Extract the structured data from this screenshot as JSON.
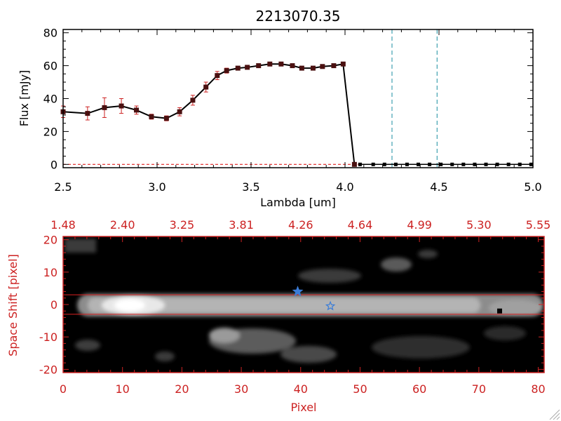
{
  "chart_data": [
    {
      "type": "line",
      "title": "2213070.35",
      "xlabel": "Lambda [um]",
      "ylabel": "Flux [mJy]",
      "xlim": [
        2.5,
        5.0
      ],
      "ylim": [
        -2,
        82
      ],
      "xticks": [
        {
          "value": 2.5,
          "label": "2.5"
        },
        {
          "value": 3.0,
          "label": "3.0"
        },
        {
          "value": 3.5,
          "label": "3.5"
        },
        {
          "value": 4.0,
          "label": "4.0"
        },
        {
          "value": 4.5,
          "label": "4.5"
        },
        {
          "value": 5.0,
          "label": "5.0"
        }
      ],
      "yticks": [
        {
          "value": 0,
          "label": "0"
        },
        {
          "value": 20,
          "label": "20"
        },
        {
          "value": 40,
          "label": "40"
        },
        {
          "value": 60,
          "label": "60"
        },
        {
          "value": 80,
          "label": "80"
        }
      ],
      "series": [
        {
          "x": [
            2.5,
            2.63,
            2.72,
            2.81,
            2.89,
            2.97,
            3.05,
            3.12,
            3.19,
            3.26,
            3.32,
            3.37,
            3.43,
            3.48,
            3.54,
            3.6,
            3.66,
            3.72,
            3.77,
            3.83,
            3.88,
            3.94,
            3.99,
            4.05
          ],
          "y": [
            32,
            31,
            34.5,
            35.5,
            33,
            29,
            28,
            32,
            39,
            47,
            54,
            57,
            58.5,
            59,
            60,
            61,
            61,
            60,
            58.5,
            58.5,
            59.5,
            60,
            61,
            0
          ],
          "yerr": [
            3.5,
            4,
            6,
            4.5,
            2.5,
            1.5,
            1.5,
            2.5,
            3,
            3,
            2.5,
            1.5,
            1,
            1,
            1,
            1,
            1,
            1,
            1,
            1,
            1,
            1,
            1,
            0
          ]
        },
        {
          "x": [
            4.08,
            4.15,
            4.21,
            4.27,
            4.33,
            4.39,
            4.45,
            4.51,
            4.57,
            4.63,
            4.69,
            4.75,
            4.81,
            4.87,
            4.93,
            4.99
          ],
          "y": [
            0,
            0,
            0,
            0,
            0,
            0,
            0,
            0,
            0,
            0,
            0,
            0,
            0,
            0,
            0,
            0
          ]
        }
      ],
      "vlines": [
        4.25,
        4.49
      ],
      "hline": 0,
      "colors": {
        "line": "#000000",
        "marker": "#000000",
        "errorbar": "#cc2222",
        "vline": "#3fa0b0",
        "hline": "#dd0000"
      },
      "grid": false
    },
    {
      "type": "heatmap",
      "xlabel": "Pixel",
      "ylabel": "Space Shift [pixel]",
      "xlim": [
        0,
        81
      ],
      "ylim": [
        -21,
        21
      ],
      "xticks": [
        {
          "value": 0,
          "label": "0"
        },
        {
          "value": 10,
          "label": "10"
        },
        {
          "value": 20,
          "label": "20"
        },
        {
          "value": 30,
          "label": "30"
        },
        {
          "value": 40,
          "label": "40"
        },
        {
          "value": 50,
          "label": "50"
        },
        {
          "value": 60,
          "label": "60"
        },
        {
          "value": 70,
          "label": "70"
        },
        {
          "value": 80,
          "label": "80"
        }
      ],
      "yticks": [
        {
          "value": -20,
          "label": "-20"
        },
        {
          "value": -10,
          "label": "-10"
        },
        {
          "value": 0,
          "label": "0"
        },
        {
          "value": 10,
          "label": "10"
        },
        {
          "value": 20,
          "label": "20"
        }
      ],
      "top_ticks": [
        {
          "value": 0,
          "label": "1.48"
        },
        {
          "value": 10,
          "label": "2.40"
        },
        {
          "value": 20,
          "label": "3.25"
        },
        {
          "value": 30,
          "label": "3.81"
        },
        {
          "value": 40,
          "label": "4.26"
        },
        {
          "value": 50,
          "label": "4.64"
        },
        {
          "value": 60,
          "label": "4.99"
        },
        {
          "value": 70,
          "label": "5.30"
        },
        {
          "value": 80,
          "label": "5.55"
        }
      ],
      "hlines": [
        3,
        -3
      ],
      "markers": [
        {
          "x": 39.5,
          "y": 4,
          "shape": "star-filled",
          "color": "#3b7dd8"
        },
        {
          "x": 45,
          "y": -0.5,
          "shape": "star-open",
          "color": "#3b7dd8"
        },
        {
          "x": 73.5,
          "y": -2,
          "shape": "square",
          "color": "#000000"
        }
      ],
      "colors": {
        "axes": "#cc2222",
        "frame": "#cc2222",
        "hline": "#dd2222"
      },
      "grid": false
    }
  ]
}
